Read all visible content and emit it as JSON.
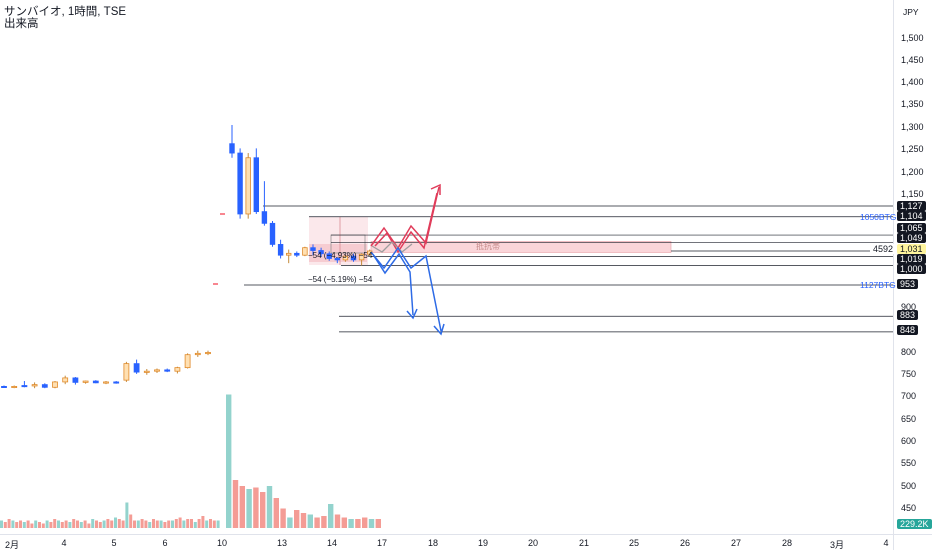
{
  "header": {
    "line1": "サンバイオ, 1時間, TSE",
    "line2": "出来高"
  },
  "currency": "JPY",
  "price_axis": [
    "1,500",
    "1,450",
    "1,400",
    "1,350",
    "1,300",
    "1,250",
    "1,200",
    "1,150",
    "900",
    "850",
    "800",
    "750",
    "700",
    "650",
    "600",
    "550",
    "500",
    "450"
  ],
  "time_axis": [
    "2月",
    "4",
    "5",
    "6",
    "10",
    "13",
    "14",
    "17",
    "18",
    "19",
    "20",
    "21",
    "25",
    "26",
    "27",
    "28",
    "3月",
    "4"
  ],
  "tags": {
    "t1127": "1,127",
    "t1104": "1,104",
    "t1065": "1,065",
    "t1049": "1,049",
    "t1031": "1,031",
    "t1019": "1,019",
    "t1000": "1,000",
    "t953": "953",
    "t883": "883",
    "t848": "848",
    "t4592": "4592",
    "vol": "229.2K"
  },
  "labels": {
    "btg1050": "1050BTG",
    "btg1127": "1127BTG",
    "measure1": "−54 (−4.93%) −54",
    "measure2": "−54 (−5.19%) −54",
    "zone": "抵抗帯"
  },
  "colors": {
    "up": "#f7a35c",
    "down": "#2962ff",
    "vol_up": "#80cbc4",
    "vol_down": "#f28b82",
    "red_arrow": "#e03c5a",
    "blue_arrow": "#2e6be6"
  },
  "chart_data": {
    "type": "candlestick",
    "unit": "JPY",
    "timeframe": "1時間",
    "candles_pre": [
      {
        "o": 726,
        "h": 728,
        "l": 723,
        "c": 725
      },
      {
        "o": 725,
        "h": 728,
        "l": 722,
        "c": 726
      },
      {
        "o": 728,
        "h": 738,
        "l": 724,
        "c": 727
      },
      {
        "o": 727,
        "h": 735,
        "l": 722,
        "c": 730
      },
      {
        "o": 730,
        "h": 733,
        "l": 722,
        "c": 724
      },
      {
        "o": 724,
        "h": 738,
        "l": 722,
        "c": 736
      },
      {
        "o": 736,
        "h": 750,
        "l": 731,
        "c": 745
      },
      {
        "o": 745,
        "h": 747,
        "l": 730,
        "c": 735
      },
      {
        "o": 735,
        "h": 739,
        "l": 732,
        "c": 738
      },
      {
        "o": 738,
        "h": 740,
        "l": 733,
        "c": 734
      },
      {
        "o": 734,
        "h": 738,
        "l": 731,
        "c": 736
      },
      {
        "o": 736,
        "h": 738,
        "l": 732,
        "c": 734
      },
      {
        "o": 740,
        "h": 781,
        "l": 736,
        "c": 777
      },
      {
        "o": 777,
        "h": 786,
        "l": 754,
        "c": 758
      },
      {
        "o": 758,
        "h": 765,
        "l": 752,
        "c": 760
      },
      {
        "o": 760,
        "h": 766,
        "l": 756,
        "c": 763
      },
      {
        "o": 763,
        "h": 766,
        "l": 758,
        "c": 760
      },
      {
        "o": 760,
        "h": 770,
        "l": 755,
        "c": 768
      },
      {
        "o": 768,
        "h": 800,
        "l": 766,
        "c": 797
      },
      {
        "o": 797,
        "h": 806,
        "l": 792,
        "c": 800
      },
      {
        "o": 800,
        "h": 806,
        "l": 796,
        "c": 802
      }
    ],
    "candles_post": [
      {
        "o": 1260,
        "h": 1300,
        "l": 1230,
        "c": 1240
      },
      {
        "o": 1240,
        "h": 1250,
        "l": 1100,
        "c": 1110
      },
      {
        "o": 1110,
        "h": 1240,
        "l": 1100,
        "c": 1230
      },
      {
        "o": 1230,
        "h": 1250,
        "l": 1110,
        "c": 1115
      },
      {
        "o": 1115,
        "h": 1180,
        "l": 1085,
        "c": 1090
      },
      {
        "o": 1090,
        "h": 1095,
        "l": 1040,
        "c": 1045
      },
      {
        "o": 1045,
        "h": 1055,
        "l": 1015,
        "c": 1022
      },
      {
        "o": 1022,
        "h": 1034,
        "l": 1005,
        "c": 1026
      },
      {
        "o": 1026,
        "h": 1030,
        "l": 1018,
        "c": 1022
      },
      {
        "o": 1022,
        "h": 1040,
        "l": 1020,
        "c": 1038
      },
      {
        "o": 1038,
        "h": 1045,
        "l": 1022,
        "c": 1032
      },
      {
        "o": 1032,
        "h": 1038,
        "l": 1018,
        "c": 1025
      },
      {
        "o": 1025,
        "h": 1030,
        "l": 1010,
        "c": 1015
      },
      {
        "o": 1015,
        "h": 1018,
        "l": 1005,
        "c": 1012
      },
      {
        "o": 1012,
        "h": 1022,
        "l": 1008,
        "c": 1020
      },
      {
        "o": 1020,
        "h": 1025,
        "l": 1008,
        "c": 1012
      },
      {
        "o": 1012,
        "h": 1026,
        "l": 1000,
        "c": 1024
      },
      {
        "o": 1024,
        "h": 1034,
        "l": 1020,
        "c": 1031
      }
    ],
    "volume_pre": [
      0.05,
      0.04,
      0.06,
      0.05,
      0.04,
      0.05,
      0.04,
      0.05,
      0.03,
      0.05,
      0.04,
      0.03,
      0.05,
      0.04,
      0.06,
      0.05,
      0.04,
      0.05,
      0.04,
      0.06,
      0.05,
      0.04,
      0.05,
      0.03,
      0.06,
      0.05,
      0.04,
      0.05,
      0.06,
      0.05,
      0.07,
      0.06,
      0.05,
      0.17,
      0.09,
      0.05,
      0.05,
      0.06,
      0.05,
      0.04,
      0.06,
      0.05,
      0.05,
      0.04,
      0.05,
      0.05,
      0.06,
      0.07,
      0.05,
      0.06,
      0.06,
      0.04,
      0.06,
      0.08,
      0.05,
      0.06,
      0.05,
      0.05
    ],
    "volume_post": [
      0.89,
      0.32,
      0.28,
      0.26,
      0.27,
      0.24,
      0.28,
      0.2,
      0.13,
      0.07,
      0.12,
      0.1,
      0.09,
      0.07,
      0.08,
      0.16,
      0.09,
      0.07,
      0.06,
      0.06,
      0.07,
      0.06,
      0.06
    ],
    "horizontal_levels": [
      1127,
      1104,
      1065,
      1049,
      1031,
      1019,
      1000,
      953,
      883,
      848
    ],
    "resistance_zone": [
      1027,
      1040
    ],
    "projections": [
      "up",
      "down"
    ]
  }
}
